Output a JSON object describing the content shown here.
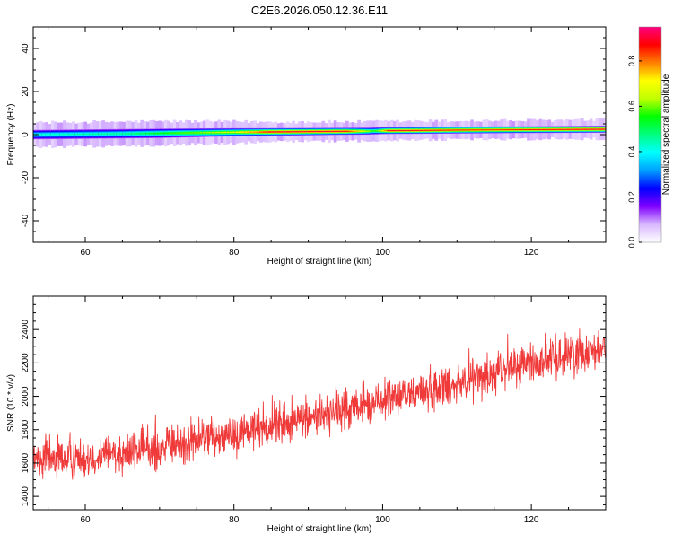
{
  "title": "C2E6.2026.050.12.36.E11",
  "chart_data": [
    {
      "type": "heatmap",
      "xlabel": "Height of straight line (km)",
      "ylabel": "Frequency (Hz)",
      "xlim": [
        53,
        130
      ],
      "ylim": [
        -50,
        50
      ],
      "xticks": [
        60,
        80,
        100,
        120
      ],
      "yticks": [
        -40,
        -20,
        0,
        20,
        40
      ],
      "band": {
        "center_hz": [
          [
            53,
            0.0
          ],
          [
            62,
            0.3
          ],
          [
            70,
            0.6
          ],
          [
            80,
            1.1
          ],
          [
            90,
            1.4
          ],
          [
            98,
            1.6
          ],
          [
            100,
            1.8
          ],
          [
            110,
            2.1
          ],
          [
            120,
            2.3
          ],
          [
            130,
            2.5
          ]
        ],
        "halfwidth_hz": [
          [
            53,
            2.2
          ],
          [
            70,
            2.2
          ],
          [
            83,
            1.8
          ],
          [
            100,
            1.6
          ],
          [
            130,
            1.6
          ]
        ],
        "peak_amplitude": [
          [
            53,
            0.45
          ],
          [
            65,
            0.5
          ],
          [
            75,
            0.65
          ],
          [
            80,
            0.72
          ],
          [
            85,
            0.95
          ],
          [
            95,
            0.95
          ],
          [
            99,
            0.6
          ],
          [
            101,
            0.95
          ],
          [
            115,
            0.9
          ],
          [
            130,
            0.95
          ]
        ]
      },
      "colorbar": {
        "label": "Normalized spectral amplitude",
        "range": [
          0,
          0.95
        ],
        "ticks": [
          "0.0",
          "0.2",
          "0.4",
          "0.6",
          "0.8"
        ],
        "colormap": [
          "#ffffff",
          "#d8b8ff",
          "#8000ff",
          "#0000ff",
          "#00a0ff",
          "#00ffff",
          "#00ff80",
          "#00ff00",
          "#c0ff00",
          "#ffff00",
          "#ff8000",
          "#ff0000",
          "#ff0080"
        ]
      }
    },
    {
      "type": "line",
      "xlabel": "Height of straight line (km)",
      "ylabel": "SNR (10 * v/v)",
      "xlim": [
        53,
        130
      ],
      "ylim": [
        1320,
        2600
      ],
      "xticks": [
        60,
        80,
        100,
        120
      ],
      "yticks": [
        1400,
        1600,
        1800,
        2000,
        2200,
        2400
      ],
      "series": [
        {
          "color": "#f03a3a",
          "trend": [
            [
              53,
              1610
            ],
            [
              60,
              1640
            ],
            [
              70,
              1690
            ],
            [
              80,
              1780
            ],
            [
              90,
              1870
            ],
            [
              100,
              1970
            ],
            [
              110,
              2080
            ],
            [
              120,
              2200
            ],
            [
              130,
              2300
            ]
          ],
          "noise_amplitude": 110
        }
      ]
    }
  ]
}
